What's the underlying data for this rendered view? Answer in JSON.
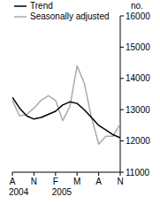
{
  "chart_data": {
    "type": "line",
    "y_label": "no.",
    "categories": [
      "A",
      null,
      null,
      "N",
      null,
      null,
      "F",
      null,
      null,
      "M",
      null,
      null,
      "A",
      null,
      null,
      "N"
    ],
    "year_labels": [
      {
        "category_index": 0,
        "text": "2004"
      },
      {
        "category_index": 6,
        "text": "2005"
      }
    ],
    "series": [
      {
        "name": "Trend",
        "color": "#000000",
        "values": [
          13400,
          13050,
          12800,
          12700,
          12750,
          12850,
          12950,
          13150,
          13250,
          13200,
          13000,
          12750,
          12500,
          12350,
          12200,
          12100
        ]
      },
      {
        "name": "Seasonally adjusted",
        "color": "#aaaaaa",
        "values": [
          13300,
          12800,
          12850,
          13050,
          13300,
          13450,
          13300,
          12650,
          13100,
          14400,
          13850,
          12750,
          11900,
          12150,
          12150,
          12550
        ]
      }
    ],
    "ylim": [
      11000,
      16000
    ],
    "yticks": [
      11000,
      12000,
      13000,
      14000,
      15000,
      16000
    ],
    "grid": false,
    "legend": "top-left"
  }
}
